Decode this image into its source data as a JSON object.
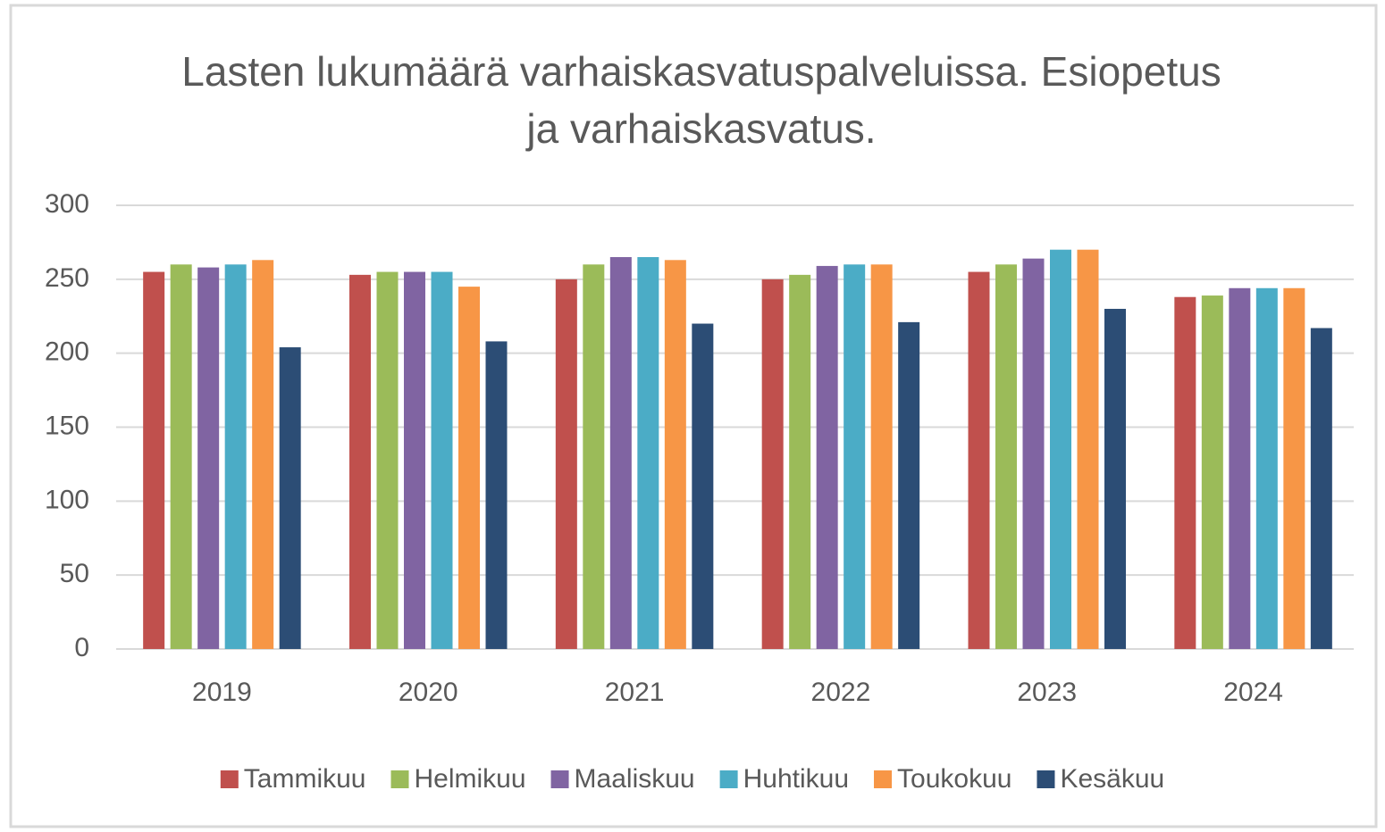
{
  "chart_data": {
    "type": "bar",
    "title": "Lasten lukumäärä varhaiskasvatuspalveluissa. Esiopetus ja varhaiskasvatus.",
    "categories": [
      "2019",
      "2020",
      "2021",
      "2022",
      "2023",
      "2024"
    ],
    "series": [
      {
        "name": "Tammikuu",
        "color": "#c0504d",
        "values": [
          255,
          253,
          250,
          250,
          255,
          238
        ]
      },
      {
        "name": "Helmikuu",
        "color": "#9bbb59",
        "values": [
          260,
          255,
          260,
          253,
          260,
          239
        ]
      },
      {
        "name": "Maaliskuu",
        "color": "#8064a2",
        "values": [
          258,
          255,
          265,
          259,
          264,
          244
        ]
      },
      {
        "name": "Huhtikuu",
        "color": "#4bacc6",
        "values": [
          260,
          255,
          265,
          260,
          270,
          244
        ]
      },
      {
        "name": "Toukokuu",
        "color": "#f79646",
        "values": [
          263,
          245,
          263,
          260,
          270,
          244
        ]
      },
      {
        "name": "Kesäkuu",
        "color": "#2c4d75",
        "values": [
          204,
          208,
          220,
          221,
          230,
          217
        ]
      }
    ],
    "ylim": [
      0,
      300
    ],
    "yticks": [
      0,
      50,
      100,
      150,
      200,
      250,
      300
    ],
    "grid": true,
    "legend": "bottom"
  }
}
